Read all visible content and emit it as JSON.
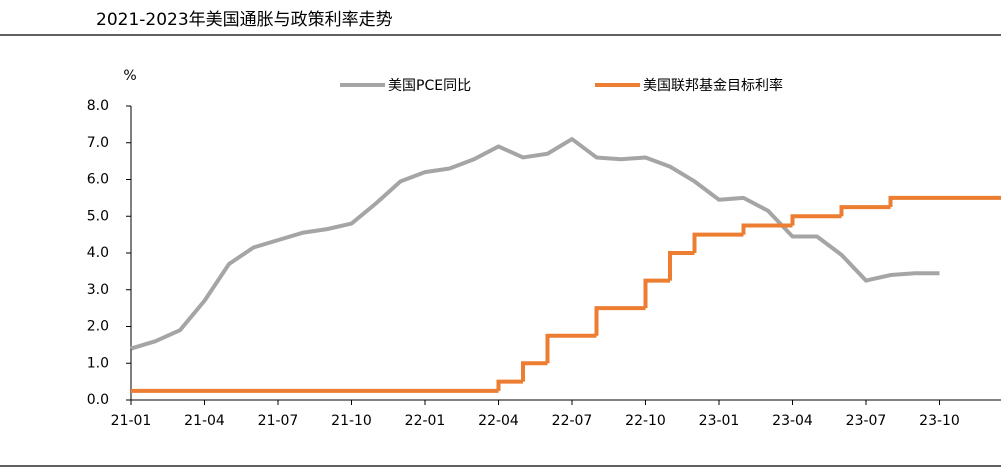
{
  "chart_data": {
    "type": "line",
    "title": "2021-2023年美国通胀与政策利率走势",
    "y_unit": "%",
    "categories": [
      "21-01",
      null,
      null,
      "21-04",
      null,
      null,
      "21-07",
      null,
      null,
      "21-10",
      null,
      null,
      "22-01",
      null,
      null,
      "22-04",
      null,
      null,
      "22-07",
      null,
      null,
      "22-10",
      null,
      null,
      "23-01",
      null,
      null,
      "23-04",
      null,
      null,
      "23-07",
      null,
      null,
      "23-10",
      null,
      null
    ],
    "series": [
      {
        "name": "美国PCE同比",
        "color": "#a5a5a5",
        "step": false,
        "values": [
          1.4,
          1.6,
          1.9,
          2.7,
          3.7,
          4.15,
          4.35,
          4.55,
          4.65,
          4.8,
          5.35,
          5.95,
          6.2,
          6.3,
          6.55,
          6.9,
          6.6,
          6.7,
          7.1,
          6.6,
          6.55,
          6.6,
          6.35,
          5.95,
          5.45,
          5.5,
          5.15,
          4.45,
          4.45,
          3.95,
          3.25,
          3.4,
          3.45,
          3.45,
          null,
          null
        ]
      },
      {
        "name": "美国联邦基金目标利率",
        "color": "#ed7d31",
        "step": true,
        "values": [
          0.25,
          0.25,
          0.25,
          0.25,
          0.25,
          0.25,
          0.25,
          0.25,
          0.25,
          0.25,
          0.25,
          0.25,
          0.25,
          0.25,
          0.25,
          0.5,
          1.0,
          1.75,
          1.75,
          2.5,
          2.5,
          3.25,
          4.0,
          4.5,
          4.5,
          4.75,
          4.75,
          5.0,
          5.0,
          5.25,
          5.25,
          5.5,
          5.5,
          5.5,
          5.5,
          5.5
        ]
      }
    ],
    "ylim": [
      0,
      8
    ],
    "yticks": [
      {
        "value": 0,
        "label": "0.0"
      },
      {
        "value": 1,
        "label": "1.0"
      },
      {
        "value": 2,
        "label": "2.0"
      },
      {
        "value": 3,
        "label": "3.0"
      },
      {
        "value": 4,
        "label": "4.0"
      },
      {
        "value": 5,
        "label": "5.0"
      },
      {
        "value": 6,
        "label": "6.0"
      },
      {
        "value": 7,
        "label": "7.0"
      },
      {
        "value": 8,
        "label": "8.0"
      }
    ],
    "grid": false,
    "legend": "top"
  }
}
